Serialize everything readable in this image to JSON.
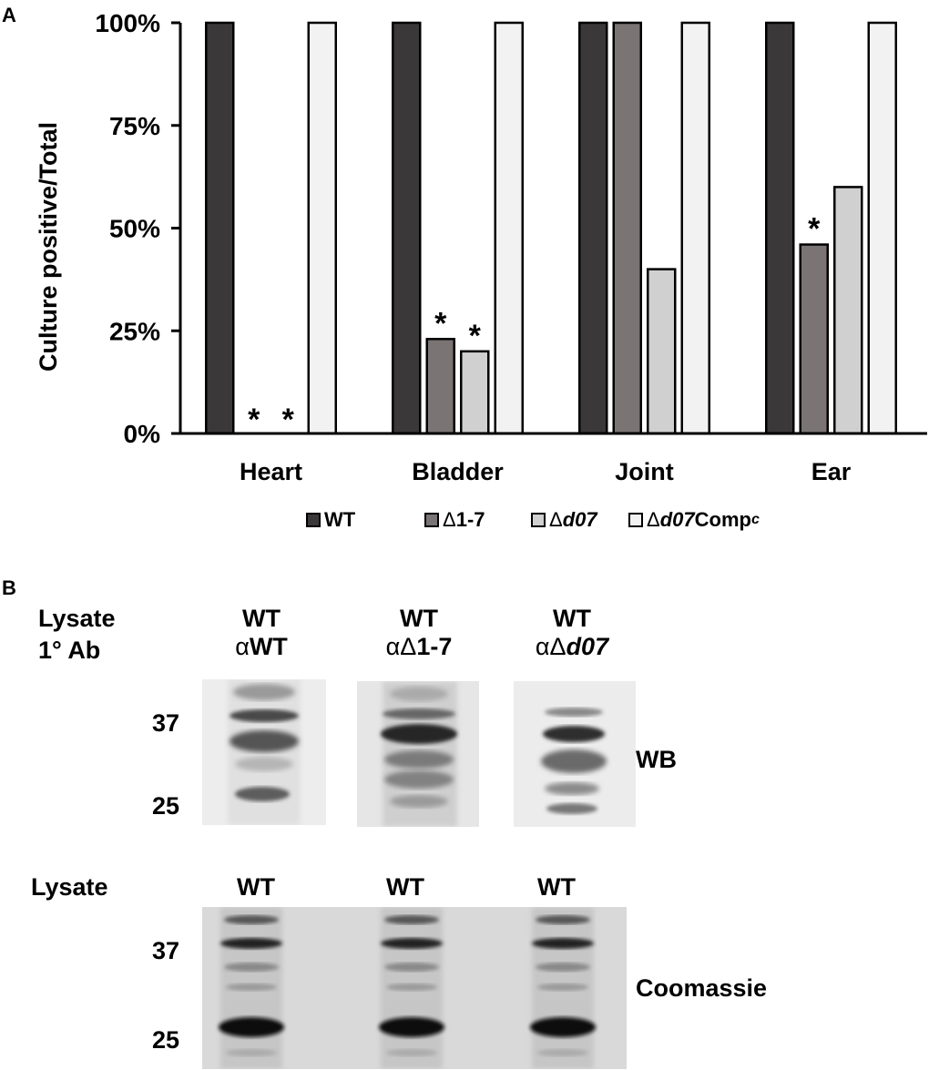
{
  "panels": {
    "a_letter": "A",
    "b_letter": "B"
  },
  "chart_data": {
    "type": "bar",
    "ylabel": "Culture positive/Total",
    "xlabel": "",
    "ylim": [
      0,
      100
    ],
    "yticks": [
      "0%",
      "25%",
      "50%",
      "75%",
      "100%"
    ],
    "ytick_values": [
      0,
      25,
      50,
      75,
      100
    ],
    "categories": [
      "Heart",
      "Bladder",
      "Joint",
      "Ear"
    ],
    "series": [
      {
        "name": "WT",
        "color": "#3a3838",
        "values": [
          100,
          100,
          100,
          100
        ]
      },
      {
        "name": "Δ1-7",
        "color": "#7a7474",
        "values": [
          0,
          23,
          100,
          46
        ]
      },
      {
        "name": "Δd07",
        "color": "#d0d0d0",
        "values": [
          0,
          20,
          40,
          60
        ]
      },
      {
        "name": "Δd07Compc",
        "color": "#f2f2f2",
        "values": [
          100,
          100,
          100,
          100
        ]
      }
    ],
    "significance": [
      {
        "category": "Heart",
        "series": "Δ1-7",
        "mark": "*"
      },
      {
        "category": "Heart",
        "series": "Δd07",
        "mark": "*"
      },
      {
        "category": "Bladder",
        "series": "Δ1-7",
        "mark": "*"
      },
      {
        "category": "Bladder",
        "series": "Δd07",
        "mark": "*"
      },
      {
        "category": "Ear",
        "series": "Δ1-7",
        "mark": "*"
      }
    ],
    "legend_placement": "bottom",
    "grid": false
  },
  "legend": {
    "wt": "WT",
    "d17_delta": "Δ",
    "d17_rest": "1-7",
    "dd07_delta": "Δ",
    "dd07_ital": "d07",
    "comp_delta": "Δ",
    "comp_ital": "d07",
    "comp_text": "Comp",
    "comp_sub": "c"
  },
  "western": {
    "row1_label": "Lysate",
    "row2_label": "1° Ab",
    "lanes": [
      {
        "lysate": "WT",
        "ab_alpha": "α",
        "ab_rest": "WT"
      },
      {
        "lysate": "WT",
        "ab_alpha": "αΔ",
        "ab_rest": "1-7"
      },
      {
        "lysate": "WT",
        "ab_alpha": "αΔ",
        "ab_rest": "d07"
      }
    ],
    "marker_37": "37",
    "marker_25": "25",
    "wb_label": "WB"
  },
  "coomassie": {
    "lysate_label": "Lysate",
    "lanes": [
      "WT",
      "WT",
      "WT"
    ],
    "marker_37": "37",
    "marker_25": "25",
    "label": "Coomassie"
  }
}
